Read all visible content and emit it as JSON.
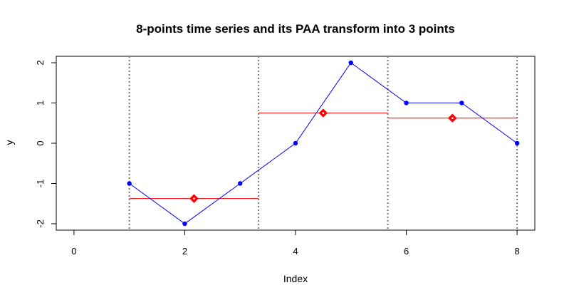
{
  "chart_data": {
    "type": "line",
    "title": "8-points time series and its PAA transform into 3 points",
    "xlabel": "Index",
    "ylabel": "y",
    "xlim": [
      -0.32,
      8.32
    ],
    "ylim": [
      -2.16,
      2.16
    ],
    "x_ticks": [
      0,
      2,
      4,
      6,
      8
    ],
    "y_ticks": [
      -2,
      -1,
      0,
      1,
      2
    ],
    "x_tick_labels": [
      "0",
      "2",
      "4",
      "6",
      "8"
    ],
    "y_tick_labels": [
      "-2",
      "-1",
      "0",
      "1",
      "2"
    ],
    "series": [
      {
        "kind": "time-series",
        "color": "#0000ff",
        "x": [
          1,
          2,
          3,
          4,
          5,
          6,
          7,
          8
        ],
        "values": [
          -1,
          -2,
          -1,
          0,
          2,
          1,
          1,
          0
        ]
      },
      {
        "kind": "paa-segments",
        "color": "#ff0000",
        "segments": [
          {
            "x_start": 1.0,
            "x_end": 3.333,
            "value": -1.375,
            "marker_x": 2.167
          },
          {
            "x_start": 3.333,
            "x_end": 5.667,
            "value": 0.75,
            "marker_x": 4.5
          },
          {
            "x_start": 5.667,
            "x_end": 8.0,
            "value": 0.625,
            "marker_x": 6.833
          }
        ]
      }
    ],
    "segment_boundaries": [
      1.0,
      3.333,
      5.667,
      8.0
    ],
    "boundary_color": "#777777",
    "grid": false
  }
}
